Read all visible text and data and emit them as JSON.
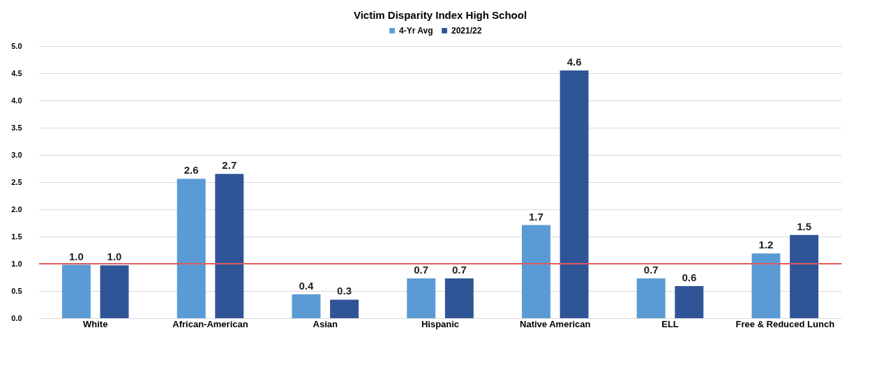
{
  "chart_data": {
    "type": "bar",
    "title": "Victim Disparity Index High School",
    "categories": [
      "White",
      "African-American",
      "Asian",
      "Hispanic",
      "Native American",
      "ELL",
      "Free & Reduced Lunch"
    ],
    "series": [
      {
        "name": "4-Yr Avg",
        "color": "#5b9bd5",
        "values": [
          0.98,
          2.56,
          0.44,
          0.73,
          1.71,
          0.73,
          1.19
        ],
        "value_labels": [
          "1.0",
          "2.6",
          "0.4",
          "0.7",
          "1.7",
          "0.7",
          "1.2"
        ]
      },
      {
        "name": "2021/22",
        "color": "#2f5597",
        "values": [
          0.97,
          2.65,
          0.34,
          0.73,
          4.55,
          0.59,
          1.53
        ],
        "value_labels": [
          "1.0",
          "2.7",
          "0.3",
          "0.7",
          "4.6",
          "0.6",
          "1.5"
        ]
      }
    ],
    "ylim": [
      0,
      5
    ],
    "yticks": [
      {
        "value": 0,
        "label": "0.0"
      },
      {
        "value": 0.5,
        "label": "0.5"
      },
      {
        "value": 1,
        "label": "1.0"
      },
      {
        "value": 1.5,
        "label": "1.5"
      },
      {
        "value": 2,
        "label": "2.0"
      },
      {
        "value": 2.5,
        "label": "2.5"
      },
      {
        "value": 3,
        "label": "3.0"
      },
      {
        "value": 3.5,
        "label": "3.5"
      },
      {
        "value": 4,
        "label": "4.0"
      },
      {
        "value": 4.5,
        "label": "4.5"
      },
      {
        "value": 5,
        "label": "5.0"
      }
    ],
    "ref_lines": [
      {
        "axis": "y",
        "value": 1,
        "color": "#e05a5a"
      }
    ],
    "grid": "y",
    "legend": "top"
  }
}
